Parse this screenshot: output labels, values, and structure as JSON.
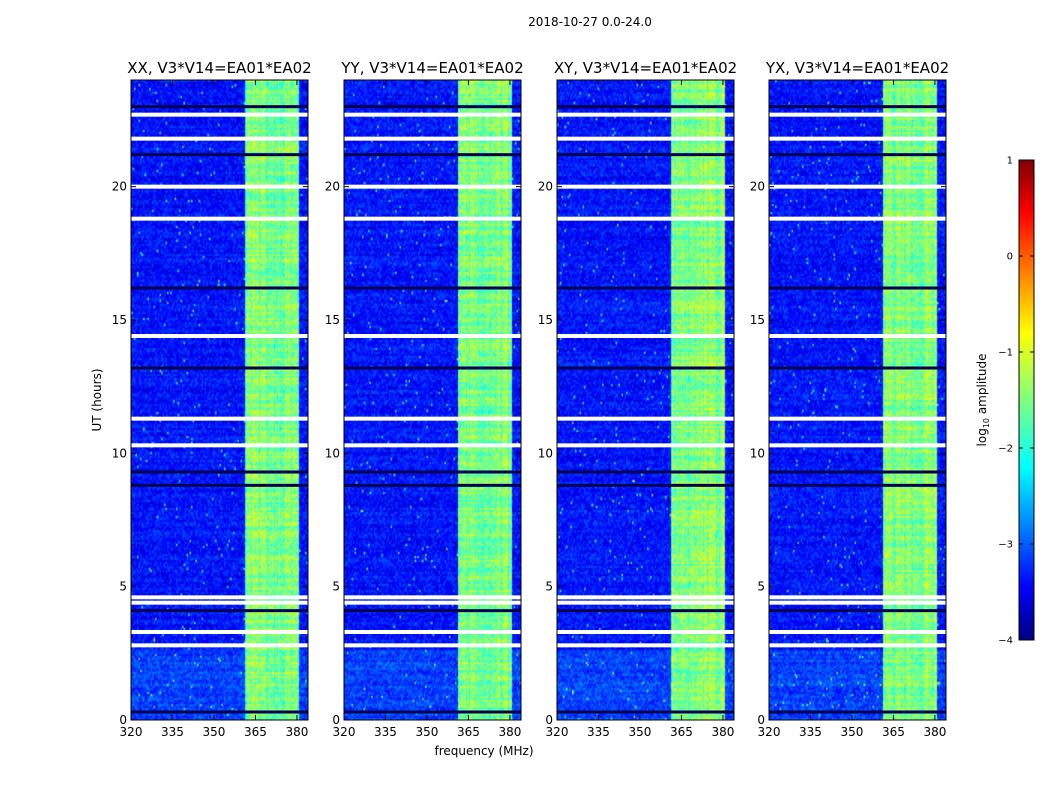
{
  "chart_data": {
    "type": "heatmap",
    "suptitle": "2018-10-27 0.0-24.0",
    "xlabel": "frequency (MHz)",
    "ylabel": "UT (hours)",
    "colorbar_label": "log10 amplitude",
    "colorbar_label_base": "log",
    "colorbar_label_sub": "10",
    "colorbar_label_rest": " amplitude",
    "colorbar_ticks": [
      "1",
      "0",
      "−1",
      "−2",
      "−3",
      "−4"
    ],
    "colorbar_range": [
      -4,
      1
    ],
    "colormap": "jet",
    "xlim": [
      320,
      384
    ],
    "ylim": [
      0,
      24
    ],
    "xticks": [
      320,
      335,
      350,
      365,
      380
    ],
    "xtick_labels": [
      "320",
      "335",
      "350",
      "365",
      "380"
    ],
    "yticks": [
      0,
      5,
      10,
      15,
      20
    ],
    "ytick_labels": [
      "0",
      "5",
      "10",
      "15",
      "20"
    ],
    "panels": [
      {
        "title": "XX, V3*V14=EA01*EA02"
      },
      {
        "title": "YY, V3*V14=EA01*EA02"
      },
      {
        "title": "XY, V3*V14=EA01*EA02"
      },
      {
        "title": "YX, V3*V14=EA01*EA02"
      }
    ],
    "bright_band_mhz": [
      361,
      381
    ],
    "bright_band_log_amplitude": -1.5,
    "background_log_amplitude": -3.3,
    "flagged_ut_hours": [
      2.8,
      3.3,
      4.4,
      4.6,
      10.3,
      11.3,
      14.4,
      18.8,
      20.0,
      21.8,
      22.7
    ],
    "dark_ut_hours": [
      0.3,
      4.1,
      8.8,
      9.3,
      13.2,
      16.2,
      21.2,
      23.0
    ]
  }
}
